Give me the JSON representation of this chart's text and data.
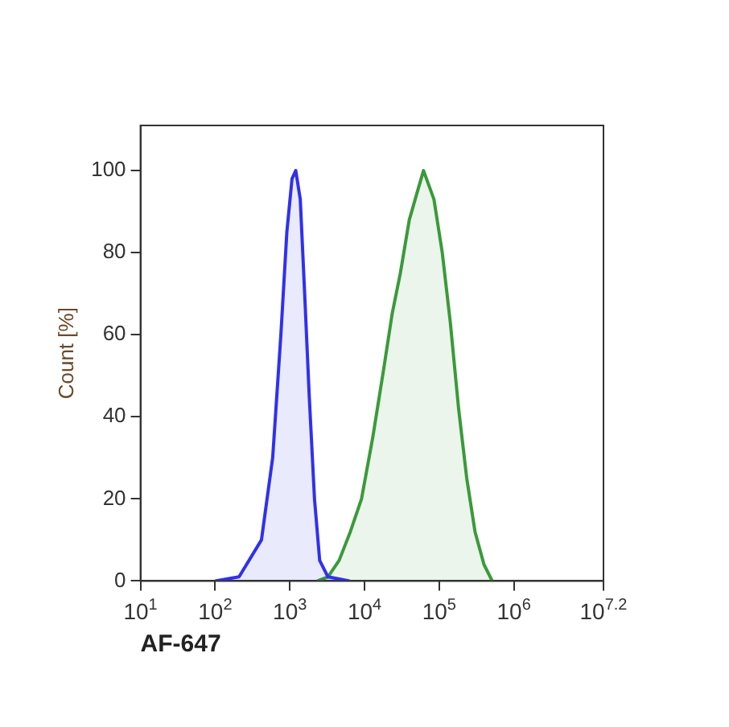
{
  "chart_data": {
    "type": "area",
    "xlabel": "AF-647",
    "ylabel": "Count [%]",
    "log": "x",
    "xlim": [
      10,
      15848932
    ],
    "xticks": [
      {
        "value": 10,
        "label": "10$^{1}$"
      },
      {
        "value": 100,
        "label": "10$^{2}$"
      },
      {
        "value": 1000,
        "label": "10$^{3}$"
      },
      {
        "value": 10000,
        "label": "10$^{4}$"
      },
      {
        "value": 100000,
        "label": "10$^{5}$"
      },
      {
        "value": 1000000,
        "label": "10$^{6}$"
      },
      {
        "value": 15848932,
        "label": "10$^{7.2}$"
      }
    ],
    "ylim": [
      0,
      111
    ],
    "yticks": [
      0,
      20,
      40,
      60,
      80,
      100
    ],
    "grid": false,
    "legend": false,
    "marker": "none",
    "line_style": "solid",
    "series": [
      {
        "color": "#3030f0",
        "x": [
          100,
          209,
          417,
          589,
          759,
          912,
          1070,
          1200,
          1380,
          1580,
          1820,
          2140,
          2510,
          3240,
          6310
        ],
        "values": [
          0,
          1,
          10,
          30,
          60,
          85,
          98,
          100,
          93,
          70,
          45,
          20,
          5,
          1,
          0
        ]
      },
      {
        "color": "#3a9a3a",
        "x": [
          2340,
          3240,
          4570,
          6460,
          9120,
          12900,
          18200,
          23400,
          30200,
          39800,
          51300,
          61700,
          85100,
          110000,
          141000,
          182000,
          234000,
          302000,
          398000,
          513000
        ],
        "values": [
          0,
          1,
          5,
          12,
          20,
          35,
          52,
          65,
          75,
          88,
          95,
          100,
          93,
          80,
          63,
          42,
          25,
          12,
          4,
          0
        ]
      }
    ]
  }
}
